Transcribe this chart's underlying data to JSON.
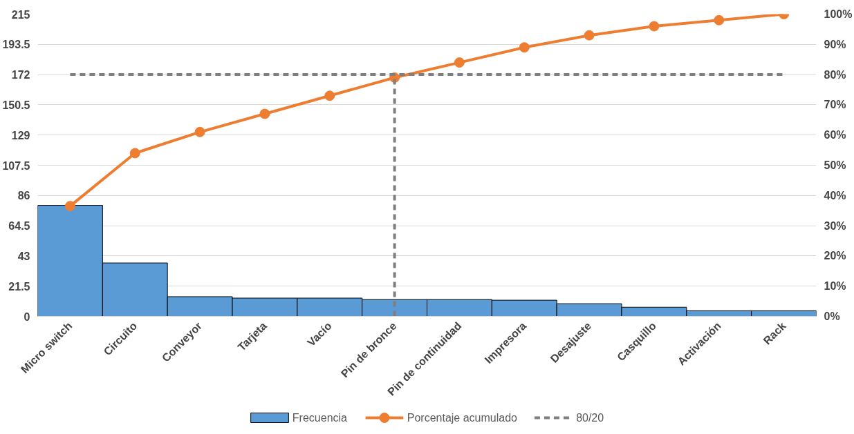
{
  "chart_data": {
    "type": "bar",
    "categories": [
      "Micro switch",
      "Circuito",
      "Conveyor",
      "Tarjeta",
      "Vacío",
      "Pin de bronce",
      "Pin de continuidad",
      "Impresora",
      "Desajuste",
      "Casquillo",
      "Activación",
      "Rack"
    ],
    "series": [
      {
        "name": "Frecuencia",
        "color": "#5b9bd5",
        "values": [
          79,
          38,
          14,
          13,
          13,
          12,
          12,
          11.5,
          9,
          6.5,
          4,
          4
        ]
      },
      {
        "name": "Porcentaje acumulado",
        "type": "line",
        "axis": "y2",
        "color": "#ed7d31",
        "marker": "circle",
        "line_style": "solid",
        "values": [
          36.5,
          54,
          61,
          67,
          73,
          79,
          84,
          89,
          93,
          96,
          98,
          100
        ]
      },
      {
        "name": "80/20",
        "type": "line",
        "axis": "y2",
        "color": "#7f7f7f",
        "marker": "none",
        "line_style": "dashed",
        "values": [
          80,
          80,
          80,
          80,
          80,
          80,
          80,
          80,
          80,
          80,
          80,
          80
        ]
      }
    ],
    "ref_lines": [
      {
        "axis": "x",
        "value": "Pin de bronce",
        "color": "#7f7f7f",
        "line_style": "dashed"
      }
    ],
    "ylim": [
      0,
      215
    ],
    "yticks": [
      0,
      21.5,
      43,
      64.5,
      86,
      107.5,
      129,
      150.5,
      172,
      193.5,
      215
    ],
    "y2lim": [
      0,
      100
    ],
    "y2ticks": [
      {
        "value": 0,
        "label": "0%"
      },
      {
        "value": 10,
        "label": "10%"
      },
      {
        "value": 20,
        "label": "20%"
      },
      {
        "value": 30,
        "label": "30%"
      },
      {
        "value": 40,
        "label": "40%"
      },
      {
        "value": 50,
        "label": "50%"
      },
      {
        "value": 60,
        "label": "60%"
      },
      {
        "value": 70,
        "label": "70%"
      },
      {
        "value": 80,
        "label": "80%"
      },
      {
        "value": 90,
        "label": "90%"
      },
      {
        "value": 100,
        "label": "100%"
      }
    ],
    "grid": "y",
    "legend": "bottom"
  }
}
